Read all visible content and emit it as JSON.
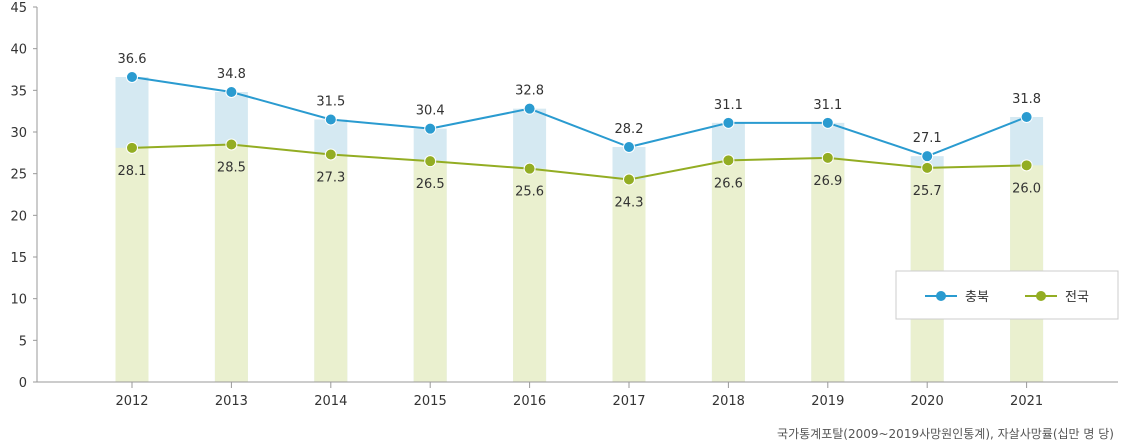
{
  "chart_data": {
    "type": "line",
    "categories": [
      "2012",
      "2013",
      "2014",
      "2015",
      "2016",
      "2017",
      "2018",
      "2019",
      "2020",
      "2021"
    ],
    "ylim": [
      0,
      45
    ],
    "yticks": [
      0,
      5,
      10,
      15,
      20,
      25,
      30,
      35,
      40,
      45
    ],
    "grid": false,
    "legend_position": "bottom-right",
    "series": [
      {
        "name": "충북",
        "color": "#2a9bd0",
        "bar_color": "#d5e9f2",
        "values": [
          36.6,
          34.8,
          31.5,
          30.4,
          32.8,
          28.2,
          31.1,
          31.1,
          27.1,
          31.8
        ]
      },
      {
        "name": "전국",
        "color": "#93ad23",
        "bar_color": "#eaf0cf",
        "values": [
          28.1,
          28.5,
          27.3,
          26.5,
          25.6,
          24.3,
          26.6,
          26.9,
          25.7,
          26.0
        ]
      }
    ]
  },
  "source": "국가통계포탈(2009~2019사망원인통계), 자살사망률(십만 명 당)"
}
